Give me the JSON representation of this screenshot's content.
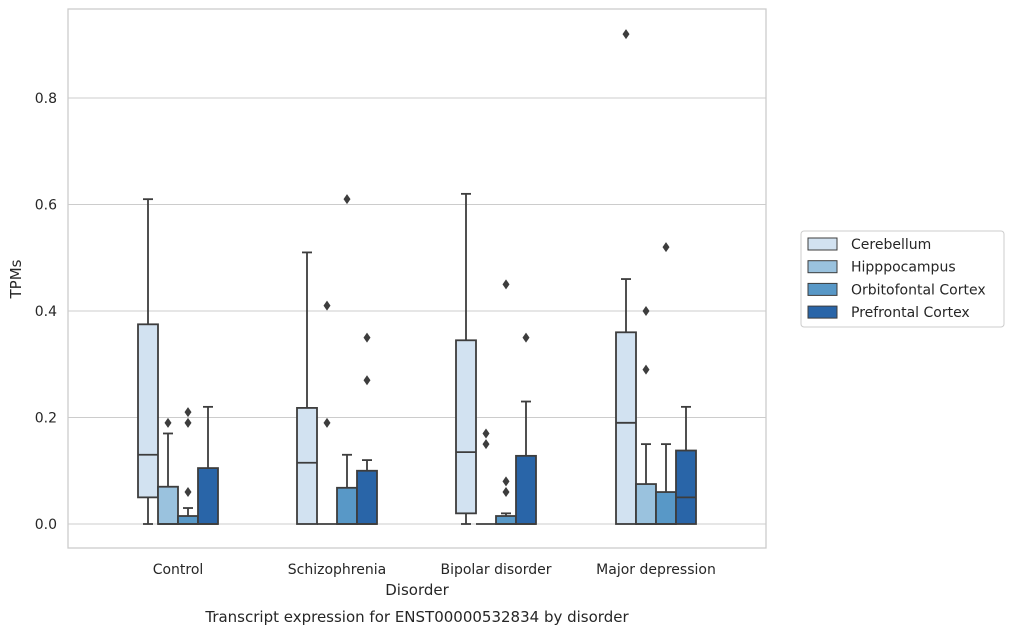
{
  "chart_data": {
    "type": "box",
    "xlabel": "Disorder",
    "ylabel": "TPMs",
    "caption": "Transcript expression for ENST00000532834 by disorder",
    "ylim": [
      -0.045,
      0.97
    ],
    "yticks": [
      0.0,
      0.2,
      0.4,
      0.6,
      0.8
    ],
    "ytick_labels": [
      "0.0",
      "0.2",
      "0.4",
      "0.6",
      "0.8"
    ],
    "grid": "horizontal",
    "legend_position": "right",
    "categories": [
      "Control",
      "Schizophrenia",
      "Bipolar disorder",
      "Major depression"
    ],
    "series": [
      {
        "name": "Cerebellum",
        "color": "#d2e2f1",
        "boxes": [
          {
            "whisker_low": 0.0,
            "q1": 0.05,
            "median": 0.13,
            "q3": 0.375,
            "whisker_high": 0.61,
            "outliers": []
          },
          {
            "whisker_low": 0.0,
            "q1": 0.0,
            "median": 0.115,
            "q3": 0.218,
            "whisker_high": 0.51,
            "outliers": []
          },
          {
            "whisker_low": 0.0,
            "q1": 0.02,
            "median": 0.135,
            "q3": 0.345,
            "whisker_high": 0.62,
            "outliers": []
          },
          {
            "whisker_low": 0.0,
            "q1": 0.0,
            "median": 0.19,
            "q3": 0.36,
            "whisker_high": 0.46,
            "outliers": [
              0.92
            ]
          }
        ]
      },
      {
        "name": "Hipppocampus",
        "color": "#9ac2de",
        "boxes": [
          {
            "whisker_low": 0.0,
            "q1": 0.0,
            "median": 0.0,
            "q3": 0.07,
            "whisker_high": 0.17,
            "outliers": [
              0.19
            ]
          },
          {
            "whisker_low": 0.0,
            "q1": 0.0,
            "median": 0.0,
            "q3": 0.0,
            "whisker_high": 0.0,
            "outliers": [
              0.41,
              0.19
            ]
          },
          {
            "whisker_low": 0.0,
            "q1": 0.0,
            "median": 0.0,
            "q3": 0.0,
            "whisker_high": 0.0,
            "outliers": [
              0.17,
              0.15
            ]
          },
          {
            "whisker_low": 0.0,
            "q1": 0.0,
            "median": 0.0,
            "q3": 0.075,
            "whisker_high": 0.15,
            "outliers": [
              0.4,
              0.29
            ]
          }
        ]
      },
      {
        "name": "Orbitofontal Cortex",
        "color": "#5898c7",
        "boxes": [
          {
            "whisker_low": 0.0,
            "q1": 0.0,
            "median": 0.0,
            "q3": 0.015,
            "whisker_high": 0.03,
            "outliers": [
              0.21,
              0.19,
              0.06
            ]
          },
          {
            "whisker_low": 0.0,
            "q1": 0.0,
            "median": 0.0,
            "q3": 0.068,
            "whisker_high": 0.13,
            "outliers": [
              0.61
            ]
          },
          {
            "whisker_low": 0.0,
            "q1": 0.0,
            "median": 0.0,
            "q3": 0.015,
            "whisker_high": 0.02,
            "outliers": [
              0.45,
              0.08,
              0.06
            ]
          },
          {
            "whisker_low": 0.0,
            "q1": 0.0,
            "median": 0.0,
            "q3": 0.06,
            "whisker_high": 0.15,
            "outliers": [
              0.52
            ]
          }
        ]
      },
      {
        "name": "Prefrontal Cortex",
        "color": "#2965a8",
        "boxes": [
          {
            "whisker_low": 0.0,
            "q1": 0.0,
            "median": 0.0,
            "q3": 0.105,
            "whisker_high": 0.22,
            "outliers": []
          },
          {
            "whisker_low": 0.0,
            "q1": 0.0,
            "median": 0.0,
            "q3": 0.1,
            "whisker_high": 0.12,
            "outliers": [
              0.35,
              0.27
            ]
          },
          {
            "whisker_low": 0.0,
            "q1": 0.0,
            "median": 0.0,
            "q3": 0.128,
            "whisker_high": 0.23,
            "outliers": [
              0.35
            ]
          },
          {
            "whisker_low": 0.0,
            "q1": 0.0,
            "median": 0.05,
            "q3": 0.138,
            "whisker_high": 0.22,
            "outliers": []
          }
        ]
      }
    ]
  }
}
